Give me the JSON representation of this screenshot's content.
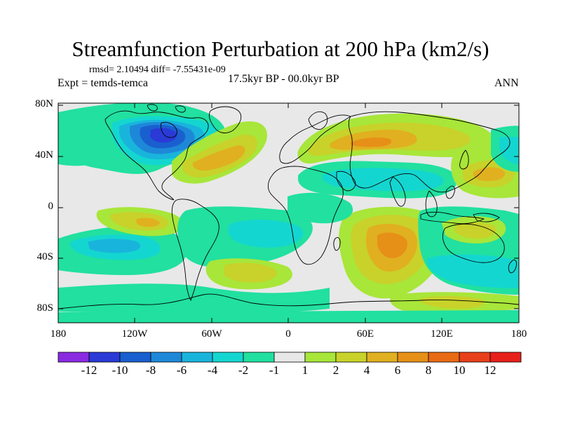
{
  "title": "Streamfunction Perturbation at 200 hPa (km2/s)",
  "stats": {
    "rmsd_label": "rmsd=",
    "rmsd": "2.10494",
    "diff_label": "diff=",
    "diff": "-7.55431e-09",
    "text": "rmsd= 2.10494 diff= -7.55431e-09"
  },
  "experiment": "Expt = temds-temca",
  "period": "17.5kyr BP - 00.0kyr BP",
  "season": "ANN",
  "axes": {
    "lat_labels": [
      "80N",
      "40N",
      "0",
      "40S",
      "80S"
    ],
    "lon_labels": [
      "180",
      "120W",
      "60W",
      "0",
      "60E",
      "120E",
      "180"
    ]
  },
  "colorbar": {
    "labels": [
      "-12",
      "-10",
      "-8",
      "-6",
      "-4",
      "-2",
      "-1",
      "1",
      "2",
      "4",
      "6",
      "8",
      "10",
      "12"
    ],
    "colors": [
      "#8a2be2",
      "#2a3ad6",
      "#1a5fcf",
      "#1e88d8",
      "#19b4dc",
      "#14d6d0",
      "#21e0a0",
      "#e8e8e8",
      "#a8e63a",
      "#c8d22a",
      "#e0b020",
      "#e69018",
      "#e86a14",
      "#e8401a",
      "#e8201a"
    ]
  },
  "map_fill_colors": {
    "background": "#e8e8e8",
    "neg1": "#21e0a0",
    "neg2": "#14d6d0",
    "neg4": "#19b4dc",
    "neg6": "#1e88d8",
    "neg8": "#1a5fcf",
    "neg10": "#2a3ad6",
    "pos1": "#a8e63a",
    "pos2": "#c8d22a",
    "pos4": "#e0b020",
    "pos6": "#e69018"
  }
}
